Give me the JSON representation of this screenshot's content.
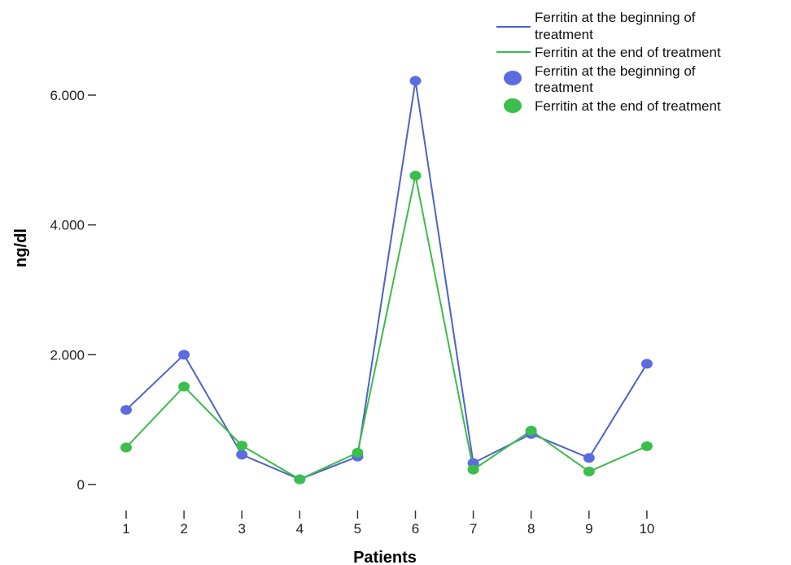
{
  "chart_data": {
    "type": "line",
    "xlabel": "Patients",
    "ylabel": "ng/dl",
    "categories": [
      "1",
      "2",
      "3",
      "4",
      "5",
      "6",
      "7",
      "8",
      "9",
      "10"
    ],
    "yticks": [
      0,
      2000,
      4000,
      6000
    ],
    "ytick_labels": [
      "0",
      "2.000",
      "4.000",
      "6.000"
    ],
    "ylim": [
      -350,
      6600
    ],
    "grid": false,
    "legend_position": "top-right",
    "series": [
      {
        "name": "Ferritin at the beginning of treatment",
        "color": "#5A6CE0",
        "line_color": "#4E62C9",
        "values": [
          1150,
          2000,
          460,
          80,
          430,
          6220,
          330,
          780,
          410,
          1860
        ]
      },
      {
        "name": "Ferritin at the end of treatment",
        "color": "#3BBE4C",
        "line_color": "#3DBB4A",
        "values": [
          570,
          1510,
          600,
          80,
          490,
          4760,
          230,
          830,
          200,
          590
        ]
      }
    ],
    "legend": {
      "line_entries": [
        {
          "line1": "Ferritin at the beginning of",
          "line2": "treatment"
        },
        {
          "line1": "Ferritin at the end of treatment",
          "line2": ""
        }
      ],
      "marker_entries": [
        {
          "line1": "Ferritin at the beginning of",
          "line2": "treatment"
        },
        {
          "line1": "Ferritin at the end of treatment",
          "line2": ""
        }
      ]
    }
  }
}
